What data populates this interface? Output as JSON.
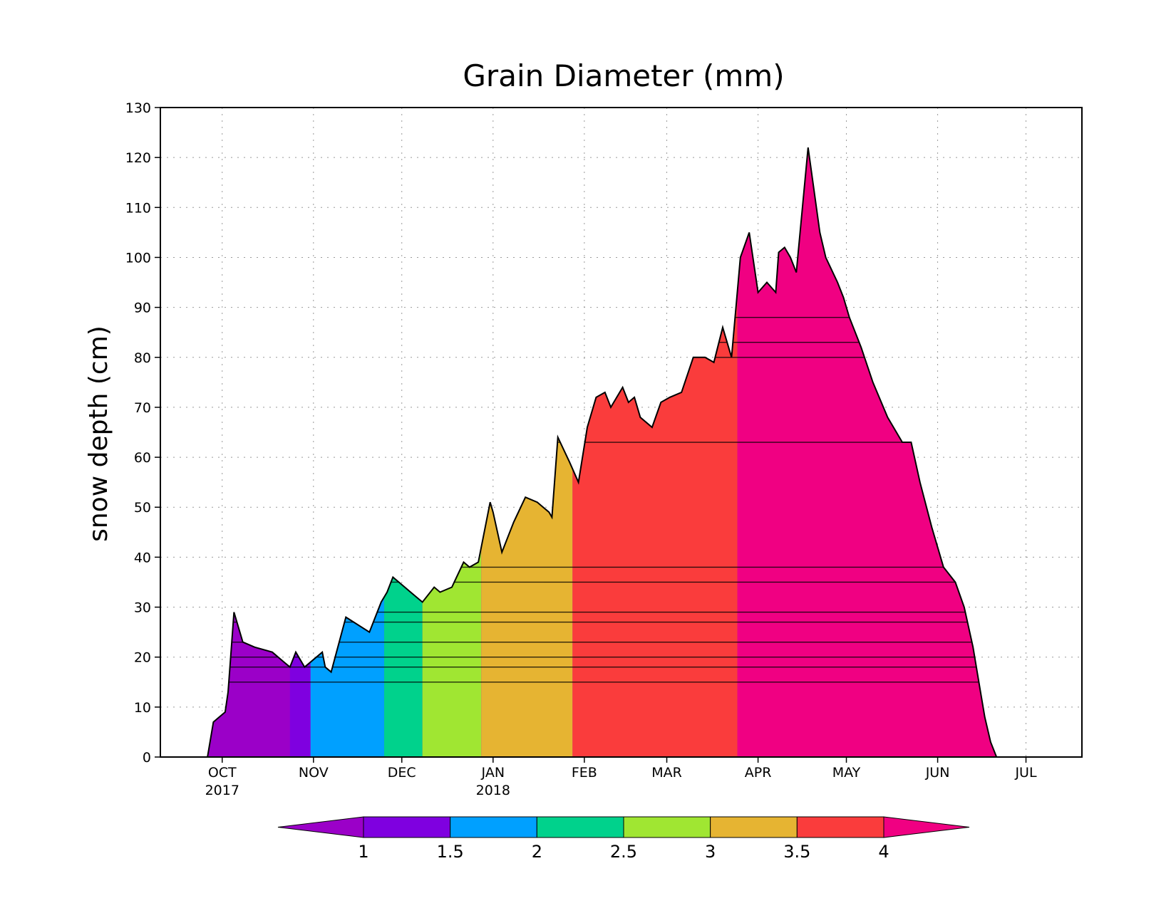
{
  "chart_data": {
    "type": "area",
    "title": "Grain Diameter (mm)",
    "xlabel": "",
    "ylabel": "snow depth (cm)",
    "ylim": [
      0,
      130
    ],
    "xlim": [
      "2017-09-10",
      "2018-07-20"
    ],
    "grid": true,
    "y_ticks": [
      0,
      10,
      20,
      30,
      40,
      50,
      60,
      70,
      80,
      90,
      100,
      110,
      120,
      130
    ],
    "x_ticks": [
      {
        "date": "2017-10-01",
        "label": "OCT",
        "year": "2017"
      },
      {
        "date": "2017-11-01",
        "label": "NOV",
        "year": ""
      },
      {
        "date": "2017-12-01",
        "label": "DEC",
        "year": ""
      },
      {
        "date": "2018-01-01",
        "label": "JAN",
        "year": "2018"
      },
      {
        "date": "2018-02-01",
        "label": "FEB",
        "year": ""
      },
      {
        "date": "2018-03-01",
        "label": "MAR",
        "year": ""
      },
      {
        "date": "2018-04-01",
        "label": "APR",
        "year": ""
      },
      {
        "date": "2018-05-01",
        "label": "MAY",
        "year": ""
      },
      {
        "date": "2018-06-01",
        "label": "JUN",
        "year": ""
      },
      {
        "date": "2018-07-01",
        "label": "JUL",
        "year": ""
      }
    ],
    "snow_depth": {
      "x": [
        "2017-09-26",
        "2017-09-28",
        "2017-09-30",
        "2017-10-02",
        "2017-10-03",
        "2017-10-05",
        "2017-10-08",
        "2017-10-12",
        "2017-10-18",
        "2017-10-22",
        "2017-10-24",
        "2017-10-26",
        "2017-10-29",
        "2017-10-31",
        "2017-11-04",
        "2017-11-05",
        "2017-11-07",
        "2017-11-12",
        "2017-11-20",
        "2017-11-24",
        "2017-11-26",
        "2017-11-28",
        "2017-12-02",
        "2017-12-04",
        "2017-12-08",
        "2017-12-12",
        "2017-12-14",
        "2017-12-18",
        "2017-12-22",
        "2017-12-24",
        "2017-12-27",
        "2017-12-31",
        "2018-01-01",
        "2018-01-04",
        "2018-01-08",
        "2018-01-12",
        "2018-01-16",
        "2018-01-20",
        "2018-01-21",
        "2018-01-23",
        "2018-01-27",
        "2018-01-30",
        "2018-02-02",
        "2018-02-05",
        "2018-02-08",
        "2018-02-10",
        "2018-02-14",
        "2018-02-16",
        "2018-02-18",
        "2018-02-20",
        "2018-02-24",
        "2018-02-27",
        "2018-03-02",
        "2018-03-06",
        "2018-03-10",
        "2018-03-14",
        "2018-03-17",
        "2018-03-20",
        "2018-03-23",
        "2018-03-26",
        "2018-03-29",
        "2018-04-01",
        "2018-04-04",
        "2018-04-07",
        "2018-04-08",
        "2018-04-10",
        "2018-04-12",
        "2018-04-14",
        "2018-04-18",
        "2018-04-22",
        "2018-04-24",
        "2018-04-28",
        "2018-04-30",
        "2018-05-02",
        "2018-05-06",
        "2018-05-10",
        "2018-05-15",
        "2018-05-20",
        "2018-05-23",
        "2018-05-26",
        "2018-05-30",
        "2018-06-03",
        "2018-06-07",
        "2018-06-10",
        "2018-06-13",
        "2018-06-15",
        "2018-06-17",
        "2018-06-19",
        "2018-06-21",
        "2018-06-23"
      ],
      "y": [
        0,
        7,
        8,
        9,
        13,
        29,
        23,
        22,
        21,
        19,
        18,
        21,
        18,
        19,
        21,
        18,
        17,
        28,
        25,
        31,
        33,
        36,
        34,
        33,
        31,
        34,
        33,
        34,
        39,
        38,
        39,
        51,
        49,
        41,
        47,
        52,
        51,
        49,
        48,
        64,
        59,
        55,
        66,
        72,
        73,
        70,
        74,
        71,
        72,
        68,
        66,
        71,
        72,
        73,
        80,
        80,
        79,
        86,
        80,
        100,
        105,
        93,
        95,
        93,
        101,
        102,
        100,
        97,
        122,
        105,
        100,
        95,
        92,
        88,
        82,
        75,
        68,
        63,
        63,
        55,
        46,
        38,
        35,
        30,
        22,
        15,
        8,
        3,
        0,
        0
      ]
    },
    "layer_top_depths_cm": [
      15,
      18,
      20,
      23,
      27,
      29,
      35,
      38,
      63,
      80,
      83,
      88
    ],
    "colorbar": {
      "label_values": [
        "1",
        "1.5",
        "2",
        "2.5",
        "3",
        "3.5",
        "4"
      ],
      "colors": [
        "#9b00c8",
        "#7f00e0",
        "#00a0ff",
        "#00d28c",
        "#a0e632",
        "#e6b432",
        "#fa3c3c",
        "#f00082"
      ],
      "ranges": [
        "<1",
        "1-1.5",
        "1.5-2",
        "2-2.5",
        "2.5-3",
        "3-3.5",
        "3.5-4",
        ">4"
      ]
    },
    "bottom_layer_grain_mm_over_time": [
      {
        "from": "2017-09-26",
        "to": "2017-10-24",
        "class": "<1"
      },
      {
        "from": "2017-10-24",
        "to": "2017-10-31",
        "class": "1-1.5"
      },
      {
        "from": "2017-10-31",
        "to": "2017-11-25",
        "class": "1.5-2"
      },
      {
        "from": "2017-11-25",
        "to": "2017-12-08",
        "class": "2-2.5"
      },
      {
        "from": "2017-12-08",
        "to": "2017-12-28",
        "class": "2.5-3"
      },
      {
        "from": "2017-12-28",
        "to": "2018-01-28",
        "class": "3-3.5"
      },
      {
        "from": "2018-01-28",
        "to": "2018-03-25",
        "class": "3.5-4"
      },
      {
        "from": "2018-03-25",
        "to": "2018-06-21",
        "class": ">4"
      }
    ]
  }
}
